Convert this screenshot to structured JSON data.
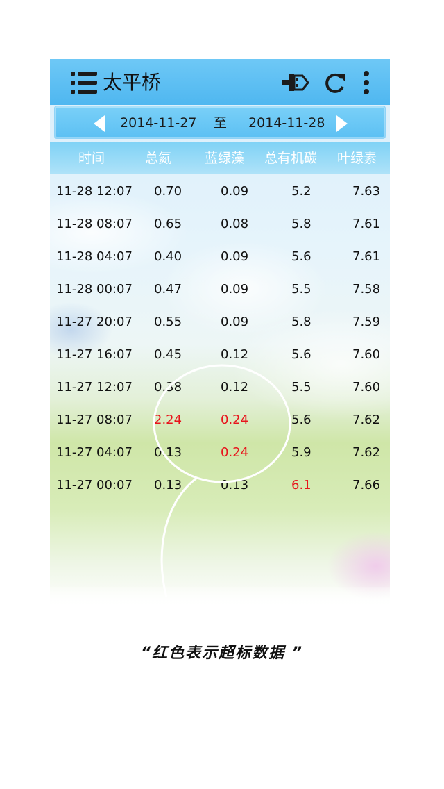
{
  "header": {
    "title": "太平桥",
    "icons": {
      "menu": "list-menu-icon",
      "usb": "usb-plug-icon",
      "refresh": "refresh-icon",
      "more": "more-vert-icon"
    }
  },
  "date_range": {
    "start": "2014-11-27",
    "separator": "至",
    "end": "2014-11-28"
  },
  "table": {
    "columns": [
      "时间",
      "总氮",
      "蓝绿藻",
      "总有机碳",
      "叶绿素"
    ],
    "rows": [
      {
        "time": "11-28 12:07",
        "total_nitrogen": "0.70",
        "blue_green_algae": "0.09",
        "toc": "5.2",
        "chlorophyll": "7.63"
      },
      {
        "time": "11-28 08:07",
        "total_nitrogen": "0.65",
        "blue_green_algae": "0.08",
        "toc": "5.8",
        "chlorophyll": "7.61"
      },
      {
        "time": "11-28 04:07",
        "total_nitrogen": "0.40",
        "blue_green_algae": "0.09",
        "toc": "5.6",
        "chlorophyll": "7.61"
      },
      {
        "time": "11-28 00:07",
        "total_nitrogen": "0.47",
        "blue_green_algae": "0.09",
        "toc": "5.5",
        "chlorophyll": "7.58"
      },
      {
        "time": "11-27 20:07",
        "total_nitrogen": "0.55",
        "blue_green_algae": "0.09",
        "toc": "5.8",
        "chlorophyll": "7.59"
      },
      {
        "time": "11-27 16:07",
        "total_nitrogen": "0.45",
        "blue_green_algae": "0.12",
        "toc": "5.6",
        "chlorophyll": "7.60"
      },
      {
        "time": "11-27 12:07",
        "total_nitrogen": "0.38",
        "blue_green_algae": "0.12",
        "toc": "5.5",
        "chlorophyll": "7.60"
      },
      {
        "time": "11-27 08:07",
        "total_nitrogen": "2.24",
        "blue_green_algae": "0.24",
        "toc": "5.6",
        "chlorophyll": "7.62"
      },
      {
        "time": "11-27 04:07",
        "total_nitrogen": "0.13",
        "blue_green_algae": "0.24",
        "toc": "5.9",
        "chlorophyll": "7.62"
      },
      {
        "time": "11-27 00:07",
        "total_nitrogen": "0.13",
        "blue_green_algae": "0.13",
        "toc": "6.1",
        "chlorophyll": "7.66"
      }
    ],
    "highlight_color": "#e8141c"
  },
  "caption": "“红色表示超标数据 ”"
}
